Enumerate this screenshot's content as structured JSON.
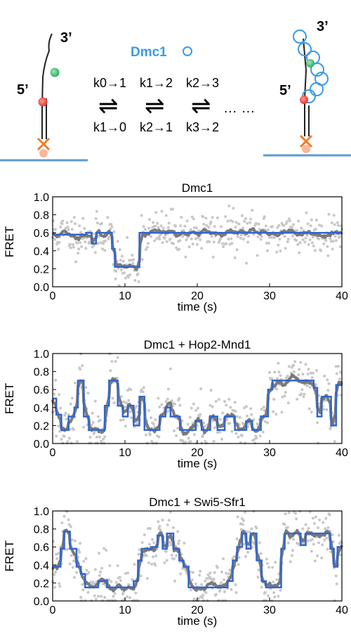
{
  "schematic": {
    "left": {
      "label_3prime": "3’",
      "label_5prime": "5’"
    },
    "right": {
      "label_3prime": "3’",
      "label_5prime": "5’"
    },
    "protein": {
      "name": "Dmc1",
      "symbol": "○"
    },
    "rates_forward": [
      "k0→1",
      "k1→2",
      "k2→3"
    ],
    "rates_reverse": [
      "k1→0",
      "k2→1",
      "k3→2"
    ],
    "equilibrium_symbol": "⇌",
    "ellipsis": "… …",
    "colors": {
      "dmc1": "#3a9ae8",
      "surface": "#5b9bd5",
      "red_dye": "#e8352f",
      "green_dye": "#3fbe6e",
      "anchor": "#f07c28"
    }
  },
  "colors": {
    "raw_points": "#c8c8c8",
    "smoothed": "#7a7a7a",
    "fit": "#3366cc"
  },
  "chart_data": [
    {
      "type": "line",
      "title": "Dmc1",
      "xlabel": "time (s)",
      "ylabel": "FRET",
      "xlim": [
        0,
        40
      ],
      "ylim": [
        0,
        1.0
      ],
      "xticks": [
        0,
        10,
        20,
        30,
        40
      ],
      "yticks": [
        0.0,
        0.2,
        0.4,
        0.6,
        0.8,
        1.0
      ],
      "xtick_labels": [
        "0",
        "10",
        "20",
        "30",
        "40"
      ],
      "ytick_labels": [
        "0.0",
        "0.2",
        "0.4",
        "0.6",
        "0.8",
        "1.0"
      ],
      "fit_steps": [
        [
          0,
          0.58
        ],
        [
          4.6,
          0.6
        ],
        [
          5.4,
          0.48
        ],
        [
          6.0,
          0.6
        ],
        [
          7.8,
          0.6
        ],
        [
          8.2,
          0.42
        ],
        [
          8.6,
          0.22
        ],
        [
          11.5,
          0.22
        ],
        [
          12.0,
          0.6
        ],
        [
          40,
          0.6
        ]
      ],
      "noise": 0.12,
      "seed": 11
    },
    {
      "type": "line",
      "title": "Dmc1 + Hop2-Mnd1",
      "xlabel": "time (s)",
      "ylabel": "FRET",
      "xlim": [
        0,
        40
      ],
      "ylim": [
        0,
        1.0
      ],
      "xticks": [
        0,
        10,
        20,
        30,
        40
      ],
      "yticks": [
        0.0,
        0.2,
        0.4,
        0.6,
        0.8,
        1.0
      ],
      "xtick_labels": [
        "0",
        "10",
        "20",
        "30",
        "40"
      ],
      "ytick_labels": [
        "0.0",
        "0.2",
        "0.4",
        "0.6",
        "0.8",
        "1.0"
      ],
      "fit_steps": [
        [
          0,
          0.5
        ],
        [
          0.5,
          0.32
        ],
        [
          1.2,
          0.15
        ],
        [
          2.2,
          0.3
        ],
        [
          3.0,
          0.4
        ],
        [
          3.5,
          0.7
        ],
        [
          4.3,
          0.3
        ],
        [
          5.0,
          0.15
        ],
        [
          7.2,
          0.42
        ],
        [
          7.8,
          0.7
        ],
        [
          9.0,
          0.42
        ],
        [
          9.7,
          0.3
        ],
        [
          10.4,
          0.42
        ],
        [
          11.2,
          0.2
        ],
        [
          12.0,
          0.52
        ],
        [
          12.7,
          0.15
        ],
        [
          14.8,
          0.3
        ],
        [
          15.6,
          0.4
        ],
        [
          16.3,
          0.3
        ],
        [
          17.0,
          0.3
        ],
        [
          17.6,
          0.15
        ],
        [
          19.8,
          0.25
        ],
        [
          20.6,
          0.15
        ],
        [
          21.8,
          0.3
        ],
        [
          22.8,
          0.15
        ],
        [
          23.8,
          0.3
        ],
        [
          24.6,
          0.3
        ],
        [
          25.2,
          0.15
        ],
        [
          26.8,
          0.25
        ],
        [
          27.6,
          0.15
        ],
        [
          28.8,
          0.3
        ],
        [
          29.8,
          0.6
        ],
        [
          30.4,
          0.7
        ],
        [
          36.1,
          0.62
        ],
        [
          36.6,
          0.3
        ],
        [
          37.2,
          0.52
        ],
        [
          38.5,
          0.2
        ],
        [
          39.2,
          0.65
        ],
        [
          40,
          0.65
        ]
      ],
      "noise": 0.14,
      "seed": 23
    },
    {
      "type": "line",
      "title": "Dmc1 + Swi5-Sfr1",
      "xlabel": "time (s)",
      "ylabel": "FRET",
      "xlim": [
        0,
        40
      ],
      "ylim": [
        0,
        1.0
      ],
      "xticks": [
        0,
        10,
        20,
        30,
        40
      ],
      "yticks": [
        0.0,
        0.2,
        0.4,
        0.6,
        0.8,
        1.0
      ],
      "xtick_labels": [
        "0",
        "10",
        "20",
        "30",
        "40"
      ],
      "ytick_labels": [
        "0.0",
        "0.2",
        "0.4",
        "0.6",
        "0.8",
        "1.0"
      ],
      "fit_steps": [
        [
          0,
          0.38
        ],
        [
          1.1,
          0.58
        ],
        [
          1.6,
          0.77
        ],
        [
          2.4,
          0.58
        ],
        [
          3.3,
          0.38
        ],
        [
          3.9,
          0.3
        ],
        [
          4.5,
          0.15
        ],
        [
          6.3,
          0.22
        ],
        [
          7.5,
          0.15
        ],
        [
          11.2,
          0.22
        ],
        [
          11.8,
          0.45
        ],
        [
          12.3,
          0.58
        ],
        [
          13.8,
          0.6
        ],
        [
          14.5,
          0.73
        ],
        [
          15.2,
          0.58
        ],
        [
          15.8,
          0.75
        ],
        [
          16.7,
          0.58
        ],
        [
          17.5,
          0.45
        ],
        [
          18.1,
          0.38
        ],
        [
          18.8,
          0.15
        ],
        [
          24.2,
          0.22
        ],
        [
          24.9,
          0.45
        ],
        [
          25.5,
          0.6
        ],
        [
          26.2,
          0.75
        ],
        [
          26.8,
          0.58
        ],
        [
          27.4,
          0.75
        ],
        [
          28.2,
          0.45
        ],
        [
          28.9,
          0.22
        ],
        [
          29.5,
          0.15
        ],
        [
          31.6,
          0.58
        ],
        [
          32.1,
          0.75
        ],
        [
          34.3,
          0.62
        ],
        [
          35.0,
          0.75
        ],
        [
          38.4,
          0.58
        ],
        [
          38.9,
          0.38
        ],
        [
          39.4,
          0.6
        ],
        [
          40,
          0.6
        ]
      ],
      "noise": 0.15,
      "seed": 37
    }
  ]
}
